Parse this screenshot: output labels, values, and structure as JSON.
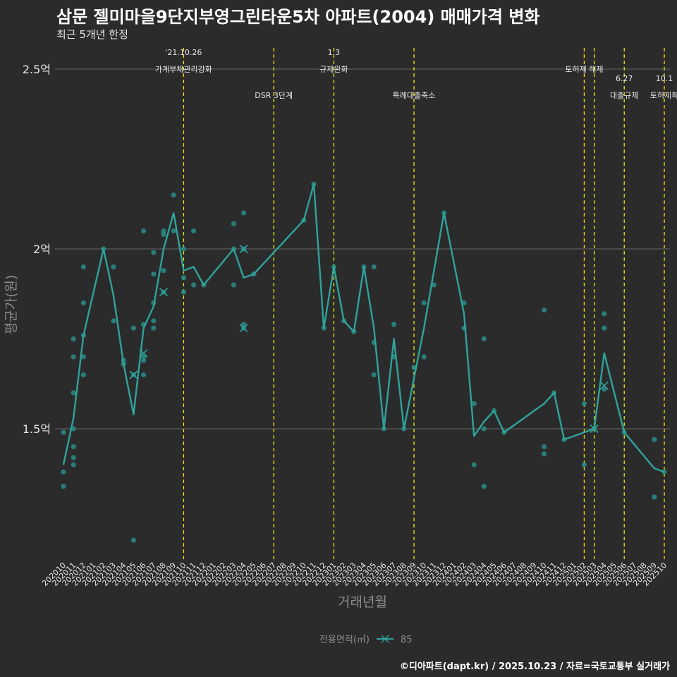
{
  "title": "삼문 젤미마을9단지부영그린타운5차 아파트(2004) 매매가격 변화",
  "subtitle": "최근 5개년 한정",
  "caption": "©디아파트(dapt.kr) / 2025.10.23 / 자료=국토교통부 실거래가",
  "colors": {
    "background": "#2b2b2c",
    "line": "#2fa39a",
    "point": "#2a8c86",
    "grid": "#595959",
    "event_line": "#e8e80a",
    "text": "#e6e6e6",
    "axis_title": "#8c8c8c"
  },
  "chart_data": {
    "type": "line",
    "xlabel": "거래년월",
    "ylabel": "평균가(원)",
    "ylim": [
      1.15,
      2.55
    ],
    "yticks": [
      {
        "value": 1.5,
        "label": "1.5억"
      },
      {
        "value": 2.0,
        "label": "2억"
      },
      {
        "value": 2.5,
        "label": "2.5억"
      }
    ],
    "legend": {
      "title": "전용면적(㎡)",
      "label": "85",
      "position": "bottom"
    },
    "categories": [
      "202010",
      "202011",
      "202012",
      "202101",
      "202102",
      "202103",
      "202104",
      "202105",
      "202106",
      "202107",
      "202108",
      "202109",
      "202110",
      "202111",
      "202112",
      "202201",
      "202202",
      "202203",
      "202204",
      "202205",
      "202206",
      "202207",
      "202208",
      "202209",
      "202210",
      "202211",
      "202212",
      "202301",
      "202302",
      "202303",
      "202304",
      "202305",
      "202306",
      "202307",
      "202308",
      "202309",
      "202310",
      "202311",
      "202312",
      "202401",
      "202402",
      "202403",
      "202404",
      "202405",
      "202406",
      "202407",
      "202408",
      "202409",
      "202410",
      "202411",
      "202412",
      "202501",
      "202502",
      "202503",
      "202504",
      "202505",
      "202506",
      "202507",
      "202508",
      "202509",
      "202510"
    ],
    "series": [
      {
        "name": "85",
        "line": [
          [
            "202010",
            1.4
          ],
          [
            "202011",
            1.53
          ],
          [
            "202012",
            1.76
          ],
          [
            "202102",
            2.0
          ],
          [
            "202103",
            1.87
          ],
          [
            "202104",
            1.68
          ],
          [
            "202105",
            1.54
          ],
          [
            "202106",
            1.78
          ],
          [
            "202107",
            1.84
          ],
          [
            "202108",
            2.0
          ],
          [
            "202109",
            2.1
          ],
          [
            "202110",
            1.94
          ],
          [
            "202111",
            1.95
          ],
          [
            "202112",
            1.9
          ],
          [
            "202203",
            2.0
          ],
          [
            "202204",
            1.92
          ],
          [
            "202205",
            1.93
          ],
          [
            "202210",
            2.08
          ],
          [
            "202211",
            2.18
          ],
          [
            "202212",
            1.78
          ],
          [
            "202301",
            1.95
          ],
          [
            "202302",
            1.8
          ],
          [
            "202303",
            1.77
          ],
          [
            "202304",
            1.95
          ],
          [
            "202305",
            1.78
          ],
          [
            "202306",
            1.5
          ],
          [
            "202307",
            1.75
          ],
          [
            "202308",
            1.5
          ],
          [
            "202310",
            1.78
          ],
          [
            "202312",
            2.1
          ],
          [
            "202402",
            1.82
          ],
          [
            "202403",
            1.48
          ],
          [
            "202404",
            1.52
          ],
          [
            "202405",
            1.55
          ],
          [
            "202406",
            1.49
          ],
          [
            "202410",
            1.57
          ],
          [
            "202411",
            1.6
          ],
          [
            "202412",
            1.47
          ],
          [
            "202502",
            1.49
          ],
          [
            "202503",
            1.5
          ],
          [
            "202504",
            1.71
          ],
          [
            "202506",
            1.49
          ],
          [
            "202509",
            1.39
          ],
          [
            "202510",
            1.38
          ]
        ],
        "points": [
          [
            "202010",
            1.49
          ],
          [
            "202010",
            1.38
          ],
          [
            "202010",
            1.34
          ],
          [
            "202011",
            1.75
          ],
          [
            "202011",
            1.7
          ],
          [
            "202011",
            1.6
          ],
          [
            "202011",
            1.5
          ],
          [
            "202011",
            1.45
          ],
          [
            "202011",
            1.42
          ],
          [
            "202011",
            1.4
          ],
          [
            "202012",
            1.95
          ],
          [
            "202012",
            1.85
          ],
          [
            "202012",
            1.76
          ],
          [
            "202012",
            1.7
          ],
          [
            "202012",
            1.65
          ],
          [
            "202102",
            2.0
          ],
          [
            "202103",
            1.95
          ],
          [
            "202103",
            1.8
          ],
          [
            "202104",
            1.69
          ],
          [
            "202104",
            1.68
          ],
          [
            "202105",
            1.78
          ],
          [
            "202105",
            1.65
          ],
          [
            "202105",
            1.19
          ],
          [
            "202106",
            2.05
          ],
          [
            "202106",
            1.79
          ],
          [
            "202106",
            1.7
          ],
          [
            "202106",
            1.69
          ],
          [
            "202106",
            1.65
          ],
          [
            "202107",
            1.99
          ],
          [
            "202107",
            1.93
          ],
          [
            "202107",
            1.85
          ],
          [
            "202107",
            1.8
          ],
          [
            "202107",
            1.78
          ],
          [
            "202108",
            2.05
          ],
          [
            "202108",
            2.04
          ],
          [
            "202108",
            1.94
          ],
          [
            "202108",
            1.88
          ],
          [
            "202109",
            2.15
          ],
          [
            "202109",
            2.05
          ],
          [
            "202110",
            2.0
          ],
          [
            "202110",
            1.92
          ],
          [
            "202110",
            1.88
          ],
          [
            "202111",
            2.05
          ],
          [
            "202111",
            1.9
          ],
          [
            "202112",
            1.9
          ],
          [
            "202203",
            2.07
          ],
          [
            "202203",
            2.0
          ],
          [
            "202203",
            1.9
          ],
          [
            "202204",
            2.1
          ],
          [
            "202204",
            2.0
          ],
          [
            "202204",
            1.79
          ],
          [
            "202204",
            1.78
          ],
          [
            "202205",
            1.93
          ],
          [
            "202210",
            2.08
          ],
          [
            "202211",
            2.18
          ],
          [
            "202212",
            1.78
          ],
          [
            "202301",
            1.95
          ],
          [
            "202302",
            1.8
          ],
          [
            "202303",
            1.77
          ],
          [
            "202304",
            1.95
          ],
          [
            "202305",
            1.95
          ],
          [
            "202305",
            1.74
          ],
          [
            "202305",
            1.65
          ],
          [
            "202306",
            1.5
          ],
          [
            "202307",
            1.79
          ],
          [
            "202307",
            1.7
          ],
          [
            "202308",
            1.5
          ],
          [
            "202309",
            1.67
          ],
          [
            "202310",
            1.85
          ],
          [
            "202310",
            1.7
          ],
          [
            "202311",
            1.9
          ],
          [
            "202312",
            2.1
          ],
          [
            "202402",
            1.85
          ],
          [
            "202402",
            1.78
          ],
          [
            "202403",
            1.57
          ],
          [
            "202403",
            1.4
          ],
          [
            "202404",
            1.75
          ],
          [
            "202404",
            1.5
          ],
          [
            "202404",
            1.34
          ],
          [
            "202405",
            1.55
          ],
          [
            "202406",
            1.49
          ],
          [
            "202410",
            1.83
          ],
          [
            "202410",
            1.45
          ],
          [
            "202410",
            1.43
          ],
          [
            "202411",
            1.6
          ],
          [
            "202412",
            1.47
          ],
          [
            "202502",
            1.57
          ],
          [
            "202502",
            1.4
          ],
          [
            "202503",
            1.5
          ],
          [
            "202504",
            1.82
          ],
          [
            "202504",
            1.78
          ],
          [
            "202504",
            1.61
          ],
          [
            "202506",
            1.49
          ],
          [
            "202509",
            1.47
          ],
          [
            "202509",
            1.31
          ],
          [
            "202510",
            1.38
          ]
        ],
        "crosses": [
          [
            "202105",
            1.65
          ],
          [
            "202106",
            1.71
          ],
          [
            "202108",
            1.88
          ],
          [
            "202204",
            2.0
          ],
          [
            "202204",
            1.78
          ],
          [
            "202503",
            1.5
          ],
          [
            "202504",
            1.62
          ]
        ]
      }
    ],
    "events": [
      {
        "at": "202110",
        "label1": "'21.10.26",
        "label2": "가계부채관리강화",
        "tier": 0
      },
      {
        "at": "202207",
        "label1": "",
        "label2": "DSR 3단계",
        "tier": 1
      },
      {
        "at": "202301",
        "label1": "1.3",
        "label2": "규제완화",
        "tier": 0
      },
      {
        "at": "202309",
        "label1": "",
        "label2": "특례대출축소",
        "tier": 1
      },
      {
        "at": "202502",
        "label1": "",
        "label2": "토허제 해제",
        "tier": 0
      },
      {
        "at": "202503",
        "label1": "",
        "label2": "",
        "tier": 0
      },
      {
        "at": "202506",
        "label1": "6.27",
        "label2": "대출규제",
        "tier": 1
      },
      {
        "at": "202510",
        "label1": "10.1",
        "label2": "토허제확",
        "tier": 1
      }
    ]
  }
}
